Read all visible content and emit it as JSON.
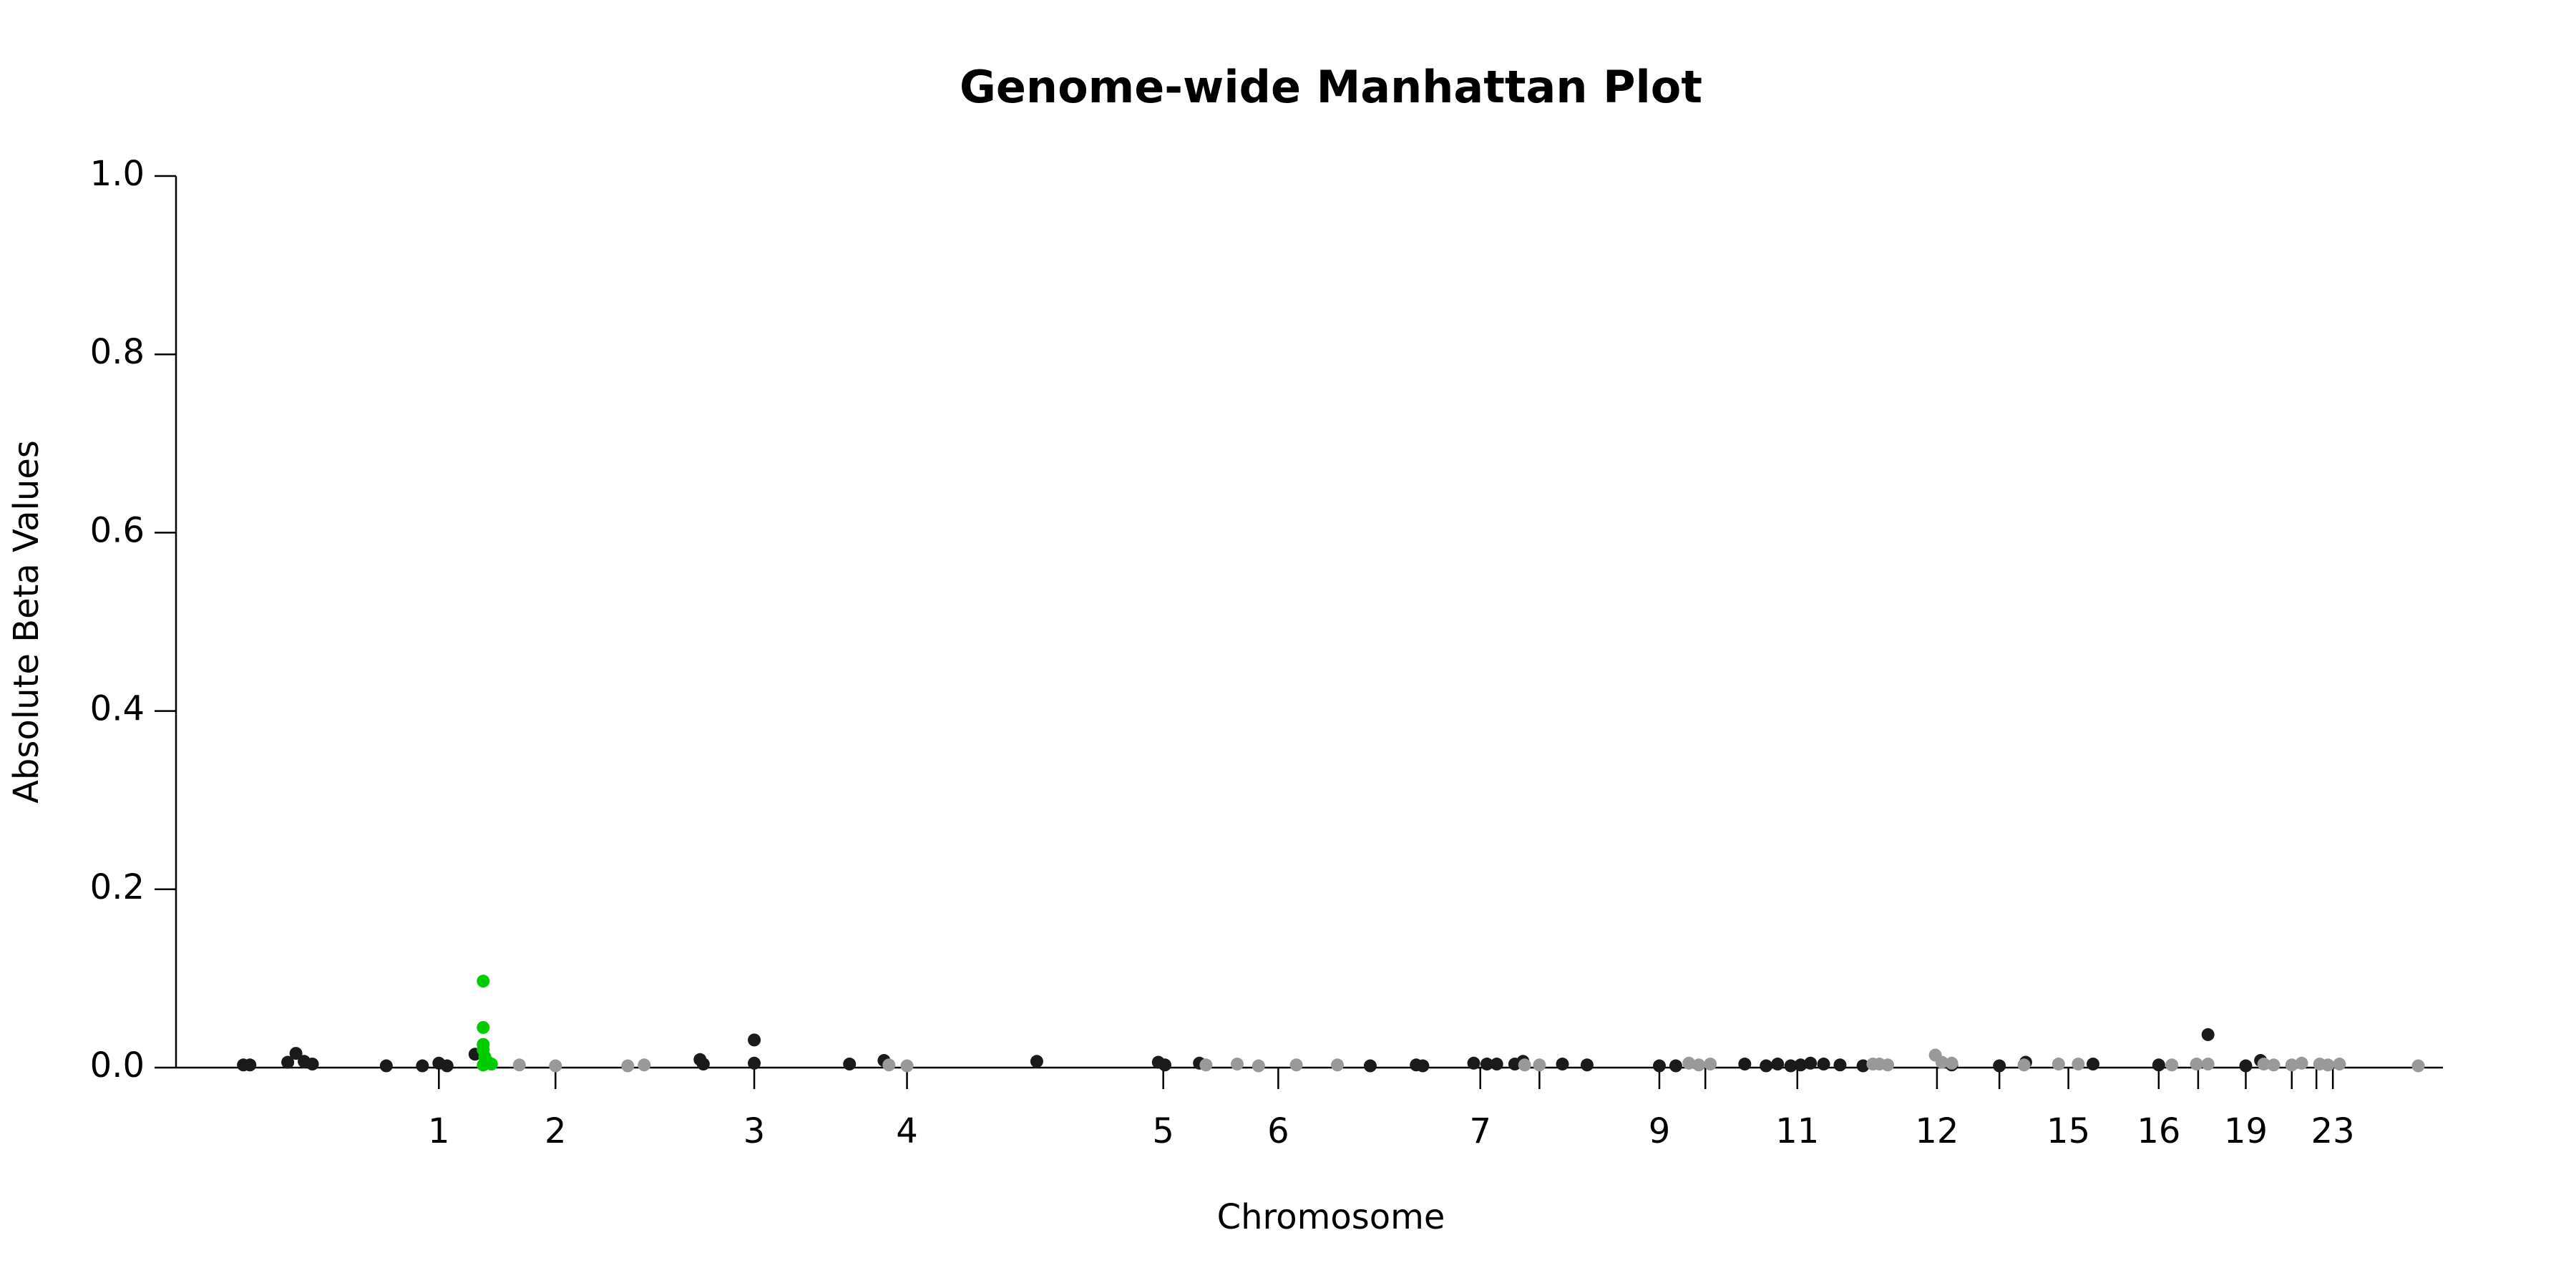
{
  "chart_data": {
    "type": "scatter",
    "title": "Genome-wide Manhattan Plot",
    "x_label": "Chromosome",
    "y_label": "Absolute Beta Values",
    "xlim": [
      0,
      1380
    ],
    "xticks": [
      {
        "value": 160,
        "label": "1"
      },
      {
        "value": 231,
        "label": "2"
      },
      {
        "value": 352,
        "label": "3"
      },
      {
        "value": 445,
        "label": "4"
      },
      {
        "value": 601,
        "label": "5"
      },
      {
        "value": 671,
        "label": "6"
      },
      {
        "value": 794,
        "label": "7"
      },
      {
        "value": 903,
        "label": "9"
      },
      {
        "value": 987,
        "label": "11"
      },
      {
        "value": 1072,
        "label": "12"
      },
      {
        "value": 1152,
        "label": "15"
      },
      {
        "value": 1207,
        "label": "16"
      },
      {
        "value": 1260,
        "label": "19"
      },
      {
        "value": 1313,
        "label": "23"
      }
    ],
    "xminorticks": [
      830,
      931,
      1110,
      1231,
      1288,
      1303
    ],
    "ylim": [
      0,
      1
    ],
    "yticks": [
      {
        "value": 0,
        "label": "0.0"
      },
      {
        "value": 0.2,
        "label": "0.2"
      },
      {
        "value": 0.4,
        "label": "0.4"
      },
      {
        "value": 0.6,
        "label": "0.6"
      },
      {
        "value": 0.8,
        "label": "0.8"
      },
      {
        "value": 1,
        "label": "1.0"
      }
    ],
    "grid": false,
    "series": [
      {
        "color": "#1a1a1a",
        "x": [
          41,
          45,
          68,
          73,
          78,
          83,
          128,
          150,
          160,
          165,
          182,
          319,
          321,
          352,
          352,
          410,
          431,
          524,
          598,
          602,
          623,
          727,
          755,
          759,
          790,
          798,
          804,
          815,
          820,
          844,
          859,
          903,
          913,
          955,
          968,
          975,
          983,
          989,
          995,
          1003,
          1013,
          1027,
          1081,
          1110,
          1126,
          1167,
          1207,
          1237,
          1260,
          1269
        ],
        "values": [
          0.003,
          0.003,
          0.006,
          0.016,
          0.007,
          0.004,
          0.002,
          0.002,
          0.005,
          0.002,
          0.015,
          0.009,
          0.004,
          0.031,
          0.005,
          0.004,
          0.008,
          0.007,
          0.006,
          0.003,
          0.005,
          0.002,
          0.003,
          0.002,
          0.005,
          0.004,
          0.004,
          0.004,
          0.007,
          0.004,
          0.003,
          0.002,
          0.002,
          0.004,
          0.002,
          0.004,
          0.002,
          0.003,
          0.005,
          0.004,
          0.003,
          0.002,
          0.003,
          0.002,
          0.006,
          0.004,
          0.003,
          0.037,
          0.002,
          0.008
        ]
      },
      {
        "color": "#999999",
        "x": [
          209,
          231,
          275,
          285,
          434,
          445,
          627,
          646,
          659,
          682,
          707,
          821,
          830,
          921,
          927,
          934,
          1033,
          1037,
          1042,
          1071,
          1075,
          1081,
          1125,
          1146,
          1158,
          1215,
          1230,
          1237,
          1271,
          1277,
          1288,
          1294,
          1305,
          1310,
          1317,
          1365
        ],
        "values": [
          0.003,
          0.002,
          0.002,
          0.003,
          0.003,
          0.002,
          0.003,
          0.004,
          0.002,
          0.003,
          0.003,
          0.003,
          0.003,
          0.005,
          0.003,
          0.004,
          0.004,
          0.004,
          0.003,
          0.014,
          0.006,
          0.005,
          0.003,
          0.004,
          0.004,
          0.003,
          0.004,
          0.004,
          0.004,
          0.003,
          0.003,
          0.005,
          0.004,
          0.003,
          0.004,
          0.002
        ]
      },
      {
        "color": "#00cc00",
        "x": [
          187,
          187,
          187,
          187,
          188,
          190,
          192,
          187
        ],
        "values": [
          0.097,
          0.045,
          0.026,
          0.02,
          0.012,
          0.006,
          0.004,
          0.003
        ]
      }
    ]
  }
}
